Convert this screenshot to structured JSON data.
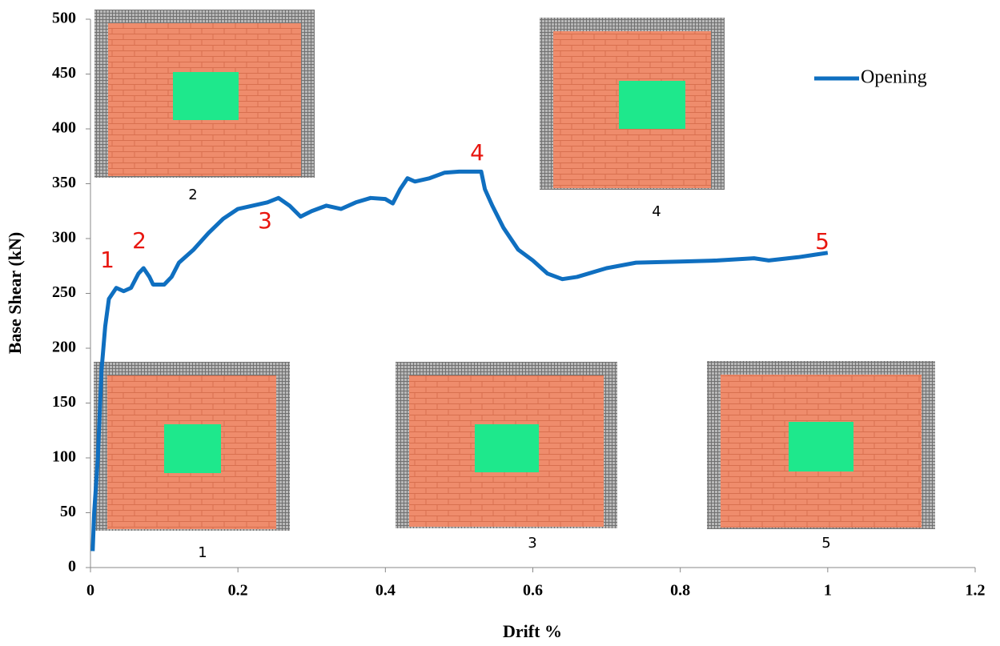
{
  "chart_data": {
    "type": "line",
    "x_label": "Drift %",
    "y_label": "Base Shear (kN)",
    "x": [
      0.003,
      0.005,
      0.01,
      0.015,
      0.02,
      0.025,
      0.035,
      0.045,
      0.055,
      0.065,
      0.072,
      0.08,
      0.085,
      0.1,
      0.11,
      0.12,
      0.14,
      0.16,
      0.18,
      0.2,
      0.22,
      0.24,
      0.255,
      0.27,
      0.285,
      0.3,
      0.32,
      0.34,
      0.36,
      0.38,
      0.4,
      0.41,
      0.42,
      0.43,
      0.44,
      0.46,
      0.48,
      0.5,
      0.53,
      0.535,
      0.545,
      0.56,
      0.58,
      0.6,
      0.62,
      0.64,
      0.66,
      0.7,
      0.74,
      0.8,
      0.85,
      0.9,
      0.92,
      0.96,
      1.0
    ],
    "series": [
      {
        "name": "Opening",
        "color": "#0f6fc0",
        "values": [
          15,
          50,
          100,
          180,
          220,
          245,
          255,
          252,
          255,
          268,
          273,
          265,
          258,
          258,
          265,
          278,
          290,
          305,
          318,
          327,
          330,
          333,
          337,
          330,
          320,
          325,
          330,
          327,
          333,
          337,
          336,
          332,
          345,
          355,
          352,
          355,
          360,
          361,
          361,
          345,
          330,
          310,
          290,
          280,
          268,
          263,
          265,
          273,
          278,
          279,
          280,
          282,
          280,
          283,
          287
        ]
      }
    ],
    "xlim": [
      0,
      1.2
    ],
    "xticks": [
      0,
      0.2,
      0.4,
      0.6,
      0.8,
      1,
      1.2
    ],
    "ylim": [
      0,
      500
    ],
    "yticks": [
      0,
      50,
      100,
      150,
      200,
      250,
      300,
      350,
      400,
      450,
      500
    ],
    "legend": "top-right",
    "annotations": [
      "1",
      "2",
      "3",
      "4",
      "5"
    ],
    "inset_labels": [
      "2",
      "4",
      "1",
      "3",
      "5"
    ]
  }
}
